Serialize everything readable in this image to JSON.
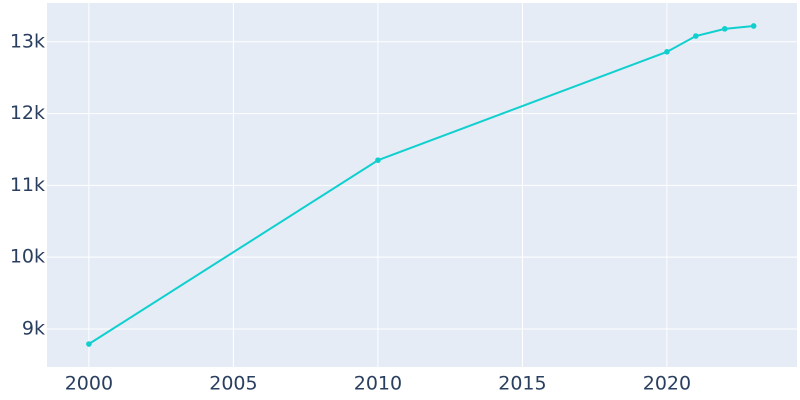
{
  "chart_data": {
    "type": "line",
    "x": [
      2000,
      2010,
      2020,
      2021,
      2022,
      2023
    ],
    "series": [
      {
        "color": "#0fcfcf",
        "values": [
          8790,
          11350,
          12860,
          13080,
          13180,
          13220
        ]
      }
    ],
    "xlim": [
      1998.55,
      2024.5
    ],
    "xticks": [
      2000,
      2005,
      2010,
      2015,
      2020
    ],
    "ylim": [
      8470,
      13540
    ],
    "yticks": [
      {
        "value": 9000,
        "label": "9k"
      },
      {
        "value": 10000,
        "label": "10k"
      },
      {
        "value": 11000,
        "label": "11k"
      },
      {
        "value": 12000,
        "label": "12k"
      },
      {
        "value": 13000,
        "label": "13k"
      }
    ],
    "grid": true
  }
}
